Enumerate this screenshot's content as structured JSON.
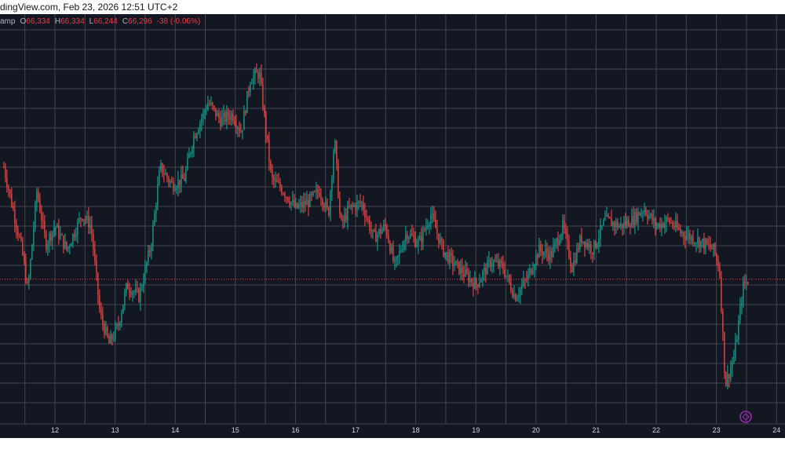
{
  "header": {
    "watermark": "dingView.com, Feb 23, 2026 12:51 UTC+2"
  },
  "legend": {
    "prefix": "amp",
    "open_label": "O",
    "open": "66,334",
    "high_label": "H",
    "high": "66,334",
    "low_label": "L",
    "low": "66,244",
    "close_label": "C",
    "close": "66,296",
    "change": "-38 (-0.06%)"
  },
  "icons": {
    "replay": "replay-icon"
  },
  "colors": {
    "background": "#131722",
    "grid": "#434651",
    "up": "#26a69a",
    "down": "#ef5350",
    "price_line": "#f23645",
    "text": "#d1d4dc",
    "replay_icon": "#9c27b0"
  },
  "chart_data": {
    "type": "candlestick",
    "x_tick_labels": [
      "12",
      "13",
      "14",
      "15",
      "16",
      "17",
      "18",
      "19",
      "20",
      "21",
      "22",
      "23",
      "24"
    ],
    "grid": true,
    "current_price": 66296,
    "y_range": [
      63600,
      70800
    ],
    "price_path": [
      [
        11.15,
        68200
      ],
      [
        11.3,
        67500
      ],
      [
        11.45,
        66800
      ],
      [
        11.55,
        66100
      ],
      [
        11.7,
        67800
      ],
      [
        11.85,
        66900
      ],
      [
        12.0,
        67200
      ],
      [
        12.2,
        66800
      ],
      [
        12.45,
        67400
      ],
      [
        12.6,
        67200
      ],
      [
        12.75,
        65700
      ],
      [
        12.9,
        65200
      ],
      [
        13.05,
        65500
      ],
      [
        13.2,
        66200
      ],
      [
        13.4,
        66000
      ],
      [
        13.6,
        66900
      ],
      [
        13.75,
        68200
      ],
      [
        13.95,
        67900
      ],
      [
        14.15,
        68000
      ],
      [
        14.3,
        68700
      ],
      [
        14.55,
        69300
      ],
      [
        14.75,
        69000
      ],
      [
        14.95,
        69100
      ],
      [
        15.1,
        68800
      ],
      [
        15.25,
        69700
      ],
      [
        15.4,
        69800
      ],
      [
        15.6,
        68000
      ],
      [
        15.8,
        67800
      ],
      [
        16.0,
        67500
      ],
      [
        16.2,
        67600
      ],
      [
        16.4,
        67800
      ],
      [
        16.55,
        67400
      ],
      [
        16.65,
        68700
      ],
      [
        16.75,
        67200
      ],
      [
        16.9,
        67500
      ],
      [
        17.1,
        67600
      ],
      [
        17.3,
        67000
      ],
      [
        17.5,
        67200
      ],
      [
        17.65,
        66500
      ],
      [
        17.85,
        67100
      ],
      [
        18.05,
        66900
      ],
      [
        18.25,
        67400
      ],
      [
        18.45,
        66800
      ],
      [
        18.6,
        66600
      ],
      [
        18.8,
        66400
      ],
      [
        19.0,
        66200
      ],
      [
        19.25,
        66600
      ],
      [
        19.45,
        66500
      ],
      [
        19.65,
        66000
      ],
      [
        19.85,
        66300
      ],
      [
        20.05,
        66800
      ],
      [
        20.25,
        66700
      ],
      [
        20.45,
        67200
      ],
      [
        20.6,
        66500
      ],
      [
        20.75,
        67000
      ],
      [
        20.95,
        66800
      ],
      [
        21.15,
        67300
      ],
      [
        21.4,
        67200
      ],
      [
        21.6,
        67300
      ],
      [
        21.8,
        67500
      ],
      [
        22.0,
        67200
      ],
      [
        22.2,
        67300
      ],
      [
        22.4,
        67100
      ],
      [
        22.6,
        67000
      ],
      [
        22.8,
        66900
      ],
      [
        22.95,
        66800
      ],
      [
        23.05,
        66500
      ],
      [
        23.15,
        64500
      ],
      [
        23.3,
        65000
      ],
      [
        23.45,
        66200
      ],
      [
        23.55,
        66296
      ]
    ]
  }
}
